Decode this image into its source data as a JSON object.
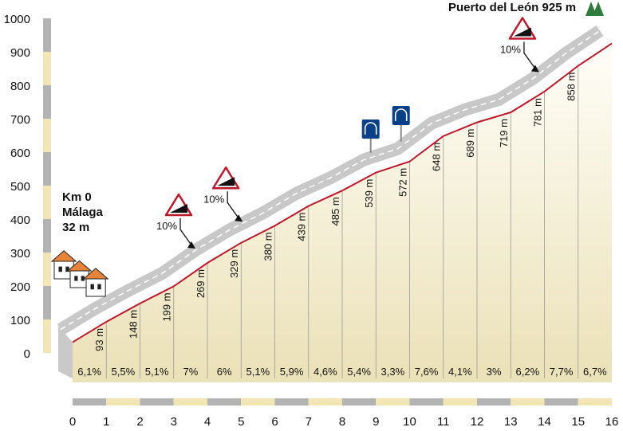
{
  "start": {
    "km_label": "Km 0",
    "town": "Málaga",
    "altitude": "32 m"
  },
  "summit": {
    "label": "Puerto del León 925 m"
  },
  "chart_data": {
    "type": "area",
    "title": "",
    "xlabel": "",
    "ylabel": "",
    "xlim": [
      0,
      16
    ],
    "ylim": [
      0,
      1000
    ],
    "x_ticks": [
      "0",
      "1",
      "2",
      "3",
      "4",
      "5",
      "6",
      "7",
      "8",
      "9",
      "10",
      "11",
      "12",
      "13",
      "14",
      "15",
      "16"
    ],
    "y_ticks": [
      "0",
      "100",
      "200",
      "300",
      "400",
      "500",
      "600",
      "700",
      "800",
      "900",
      "1000"
    ],
    "series": [
      {
        "x": [
          0,
          1,
          2,
          3,
          4,
          5,
          6,
          7,
          8,
          9,
          10,
          11,
          12,
          13,
          14,
          15,
          16
        ],
        "y": [
          32,
          93,
          148,
          199,
          269,
          329,
          380,
          439,
          485,
          539,
          572,
          648,
          689,
          719,
          781,
          858,
          925
        ]
      }
    ],
    "altitude_labels": [
      "93 m",
      "148 m",
      "199 m",
      "269 m",
      "329 m",
      "380 m",
      "439 m",
      "485 m",
      "539 m",
      "572 m",
      "648 m",
      "689 m",
      "719 m",
      "781 m",
      "858 m"
    ],
    "gradients": [
      "6,1%",
      "5,5%",
      "5,1%",
      "7%",
      "6%",
      "5,1%",
      "5,9%",
      "4,6%",
      "5,4%",
      "3,3%",
      "7,6%",
      "4,1%",
      "3%",
      "6,2%",
      "7,7%",
      "6,7%"
    ],
    "steep_markers": [
      {
        "label": "10%",
        "km": 4
      },
      {
        "label": "10%",
        "km": 5.4
      },
      {
        "label": "10%",
        "km": 14.2
      }
    ],
    "tunnels": [
      {
        "km": 9.2
      },
      {
        "km": 10.1
      }
    ],
    "colors": {
      "profile_line": "#c0182b",
      "road": "#c8c8c8",
      "fill_top": "#fffdf2",
      "fill_bottom": "#ece3bd",
      "axis_grey": "#b3b3b3",
      "axis_cream": "#f3e6b6",
      "sign_blue": "#0a3f8a",
      "tree": "#2f7d3b",
      "house_roof": "#e8843a"
    }
  }
}
